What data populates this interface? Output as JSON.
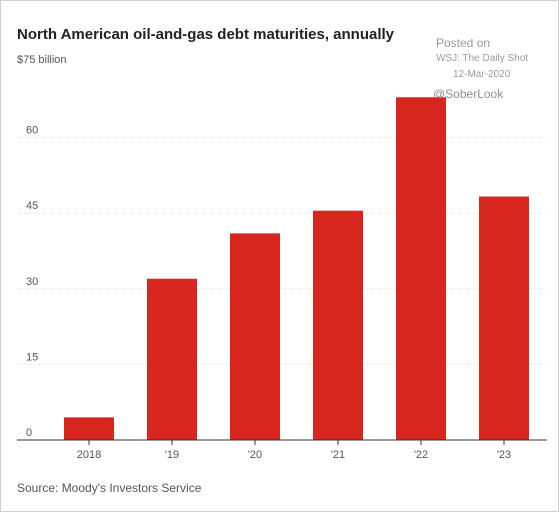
{
  "chart_data": {
    "type": "bar",
    "title": "North American oil-and-gas debt maturities, annually",
    "unit_label": "$75 billion",
    "categories": [
      "2018",
      "'19",
      "'20",
      "'21",
      "'22",
      "'23"
    ],
    "values": [
      4.5,
      32,
      41,
      45.5,
      68,
      48.3
    ],
    "ylim": [
      0,
      75
    ],
    "yticks": [
      0,
      15,
      30,
      45,
      60
    ],
    "xlabel": "",
    "ylabel": "",
    "grid": true,
    "source": "Source: Moody's Investors Service"
  },
  "watermark": {
    "line1": "Posted on",
    "line2": "WSJ: The Daily Shot",
    "line3": "12-Mar-2020",
    "handle": "@SoberLook"
  },
  "colors": {
    "bar": "#d8261e",
    "grid": "#e3e3e3",
    "axis": "#333333"
  }
}
